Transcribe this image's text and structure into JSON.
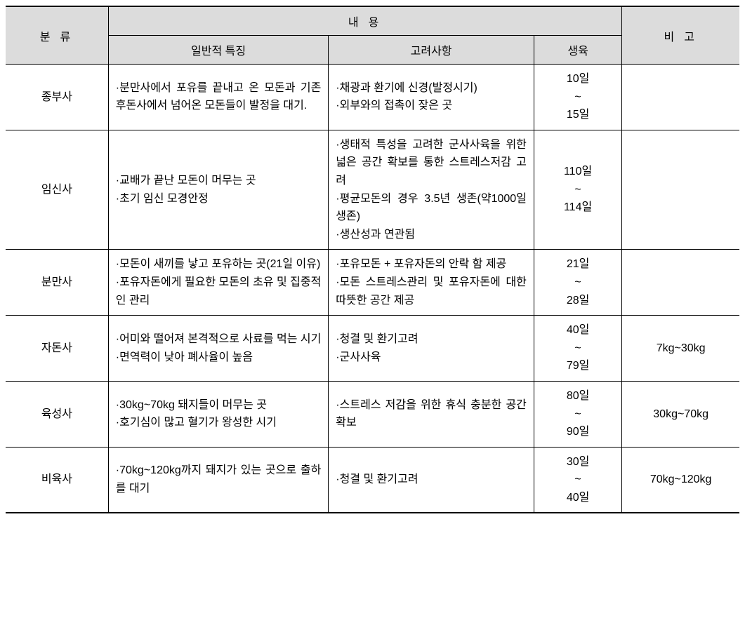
{
  "table": {
    "header": {
      "category": "분 류",
      "content_group": "내 용",
      "general": "일반적 특징",
      "consider": "고려사항",
      "growth": "생육",
      "note": "비 고"
    },
    "rows": [
      {
        "category": "종부사",
        "general": "·분만사에서 포유를 끝내고 온 모돈과 기존 후돈사에서 넘어온 모돈들이 발정을 대기.",
        "consider": "·채광과 환기에 신경(발정시기)\n·외부와의 접촉이 잦은 곳",
        "growth": "10일\n~\n15일",
        "note": ""
      },
      {
        "category": "임신사",
        "general": "·교배가 끝난 모돈이 머무는 곳\n·초기 임신 모경안정",
        "consider": "·생태적 특성을 고려한 군사사육을 위한 넓은 공간 확보를 통한 스트레스저감 고려\n·평균모돈의 경우 3.5년 생존(약1000일 생존)\n·생산성과 연관됨",
        "growth": "110일\n~\n114일",
        "note": ""
      },
      {
        "category": "분만사",
        "general": "·모돈이 새끼를 낳고 포유하는 곳(21일 이유)\n·포유자돈에게 필요한 모돈의 초유 및 집중적인 관리",
        "consider": "·포유모돈 + 포유자돈의 안락 함 제공\n·모돈 스트레스관리 및 포유자돈에 대한 따뜻한 공간 제공",
        "growth": "21일\n~\n28일",
        "note": ""
      },
      {
        "category": "자돈사",
        "general": "·어미와 떨어져 본격적으로 사료를 먹는 시기\n·면역력이 낮아 폐사율이 높음",
        "consider": "·청결 및 환기고려\n·군사사육",
        "growth": "40일\n~\n79일",
        "note": "7kg~30kg"
      },
      {
        "category": "육성사",
        "general": "·30kg~70kg 돼지들이 머무는 곳\n·호기심이 많고 혈기가 왕성한 시기",
        "consider": "·스트레스 저감을 위한 휴식 충분한 공간 확보",
        "growth": "80일\n~\n90일",
        "note": "30kg~70kg"
      },
      {
        "category": "비육사",
        "general": "·70kg~120kg까지 돼지가 있는 곳으로 출하를 대기",
        "consider": "·청결 및 환기고려",
        "growth": "30일\n~\n40일",
        "note": "70kg~120kg"
      }
    ]
  }
}
